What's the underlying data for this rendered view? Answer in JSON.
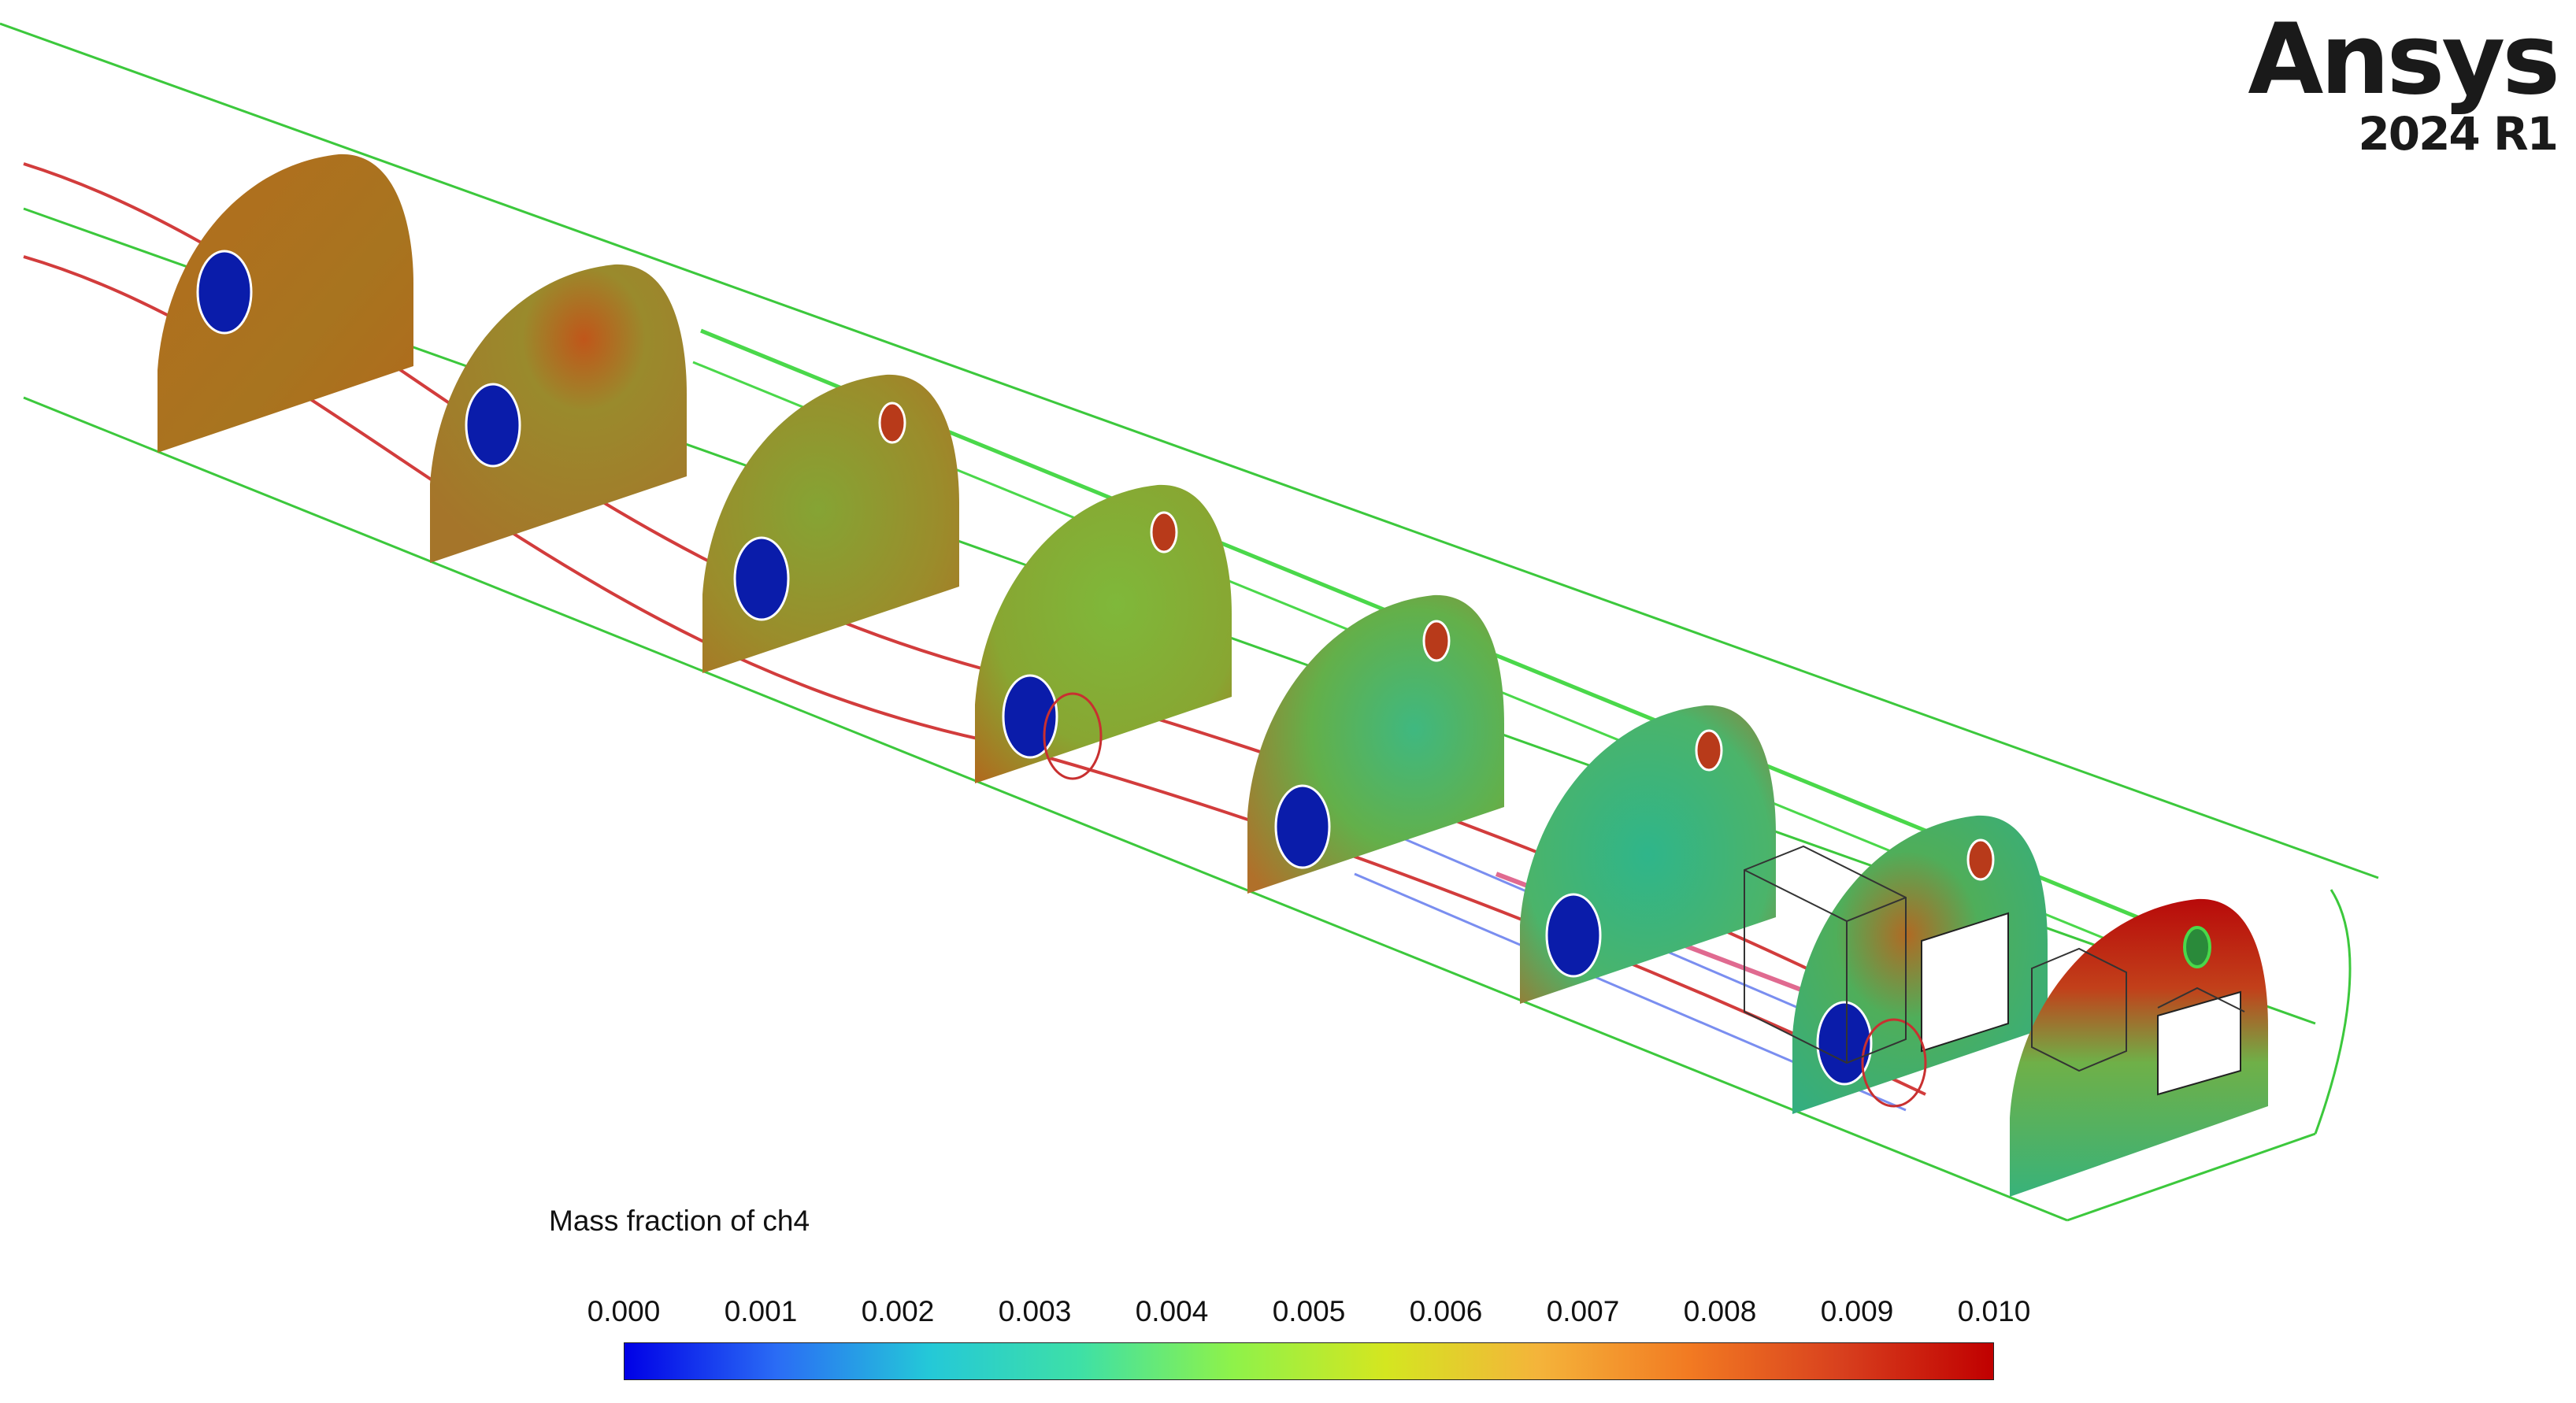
{
  "app": {
    "brand_name": "Ansys",
    "version": "2024 R1"
  },
  "legend": {
    "title": "Mass fraction of ch4",
    "ticks": [
      "0.000",
      "0.001",
      "0.002",
      "0.003",
      "0.004",
      "0.005",
      "0.006",
      "0.007",
      "0.008",
      "0.009",
      "0.010"
    ],
    "range": [
      0.0,
      0.01
    ],
    "colormap": [
      "#0000e6",
      "#2a6cf5",
      "#24c8d8",
      "#3ee0a6",
      "#8ef24a",
      "#d4e620",
      "#f4b43a",
      "#f27a22",
      "#d8401e",
      "#c00000"
    ]
  },
  "scene": {
    "outline_color": "#3cc83c",
    "pipe_color": "#d23c3c",
    "section_colors": [
      "#b5701f",
      "#a9762a",
      "#9c8a2c",
      "#8ea532",
      "#62b047",
      "#3fad6a",
      "#36b07a",
      "#43b266"
    ],
    "inlet_color": "#0a1caa",
    "outlet_color": "#b83a1a"
  }
}
